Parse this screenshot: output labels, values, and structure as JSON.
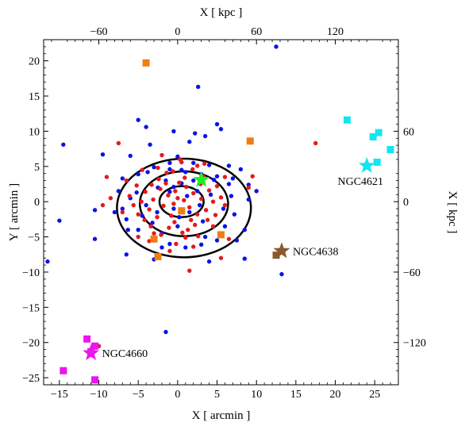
{
  "chart_data": {
    "type": "scatter",
    "title": "",
    "xlabel": "X [ arcmin ]",
    "ylabel": "Y [ arcmin ]",
    "top_axis_label": "X [ kpc ]",
    "right_axis_label": "X [ kpc ]",
    "xlim": [
      -17,
      28
    ],
    "ylim": [
      -26,
      23
    ],
    "x_ticks": [
      -15,
      -10,
      -5,
      0,
      5,
      10,
      15,
      20,
      25
    ],
    "y_ticks": [
      -25,
      -20,
      -15,
      -10,
      -5,
      0,
      5,
      10,
      15,
      20
    ],
    "top_ticks": [
      {
        "label": "-60",
        "x_arcmin": -10
      },
      {
        "label": "0",
        "x_arcmin": 0
      },
      {
        "label": "60",
        "x_arcmin": 10
      },
      {
        "label": "120",
        "x_arcmin": 20
      }
    ],
    "right_ticks": [
      {
        "label": "60",
        "y_arcmin": 10
      },
      {
        "label": "0",
        "y_arcmin": 0
      },
      {
        "label": "-60",
        "y_arcmin": -10
      },
      {
        "label": "-120",
        "y_arcmin": -20
      }
    ],
    "grid": false,
    "colors": {
      "blue": "#0a14e6",
      "red": "#e41a1a",
      "orange": "#f07d14",
      "cyan": "#14e6f0",
      "magenta": "#ee14ee",
      "brown": "#8a5a2c",
      "green": "#22ee22",
      "contour": "#000000"
    },
    "contours": [
      {
        "cx": 0.5,
        "cy": 0,
        "rx": 2.8,
        "ry": 2.2
      },
      {
        "cx": 0.8,
        "cy": -0.3,
        "rx": 5.6,
        "ry": 4.6
      },
      {
        "cx": 0.8,
        "cy": -0.9,
        "rx": 8.5,
        "ry": 7.0
      }
    ],
    "series": [
      {
        "marker": "circle",
        "color": "#0a14e6",
        "points": [
          [
            12.5,
            22
          ],
          [
            2.6,
            16.3
          ],
          [
            -5,
            11.6
          ],
          [
            5,
            11
          ],
          [
            5.5,
            10.3
          ],
          [
            -4,
            10.6
          ],
          [
            -0.5,
            10
          ],
          [
            2.2,
            9.7
          ],
          [
            3.5,
            9.3
          ],
          [
            1.5,
            8.5
          ],
          [
            -14.5,
            8.1
          ],
          [
            -9.5,
            6.7
          ],
          [
            -3.5,
            8.1
          ],
          [
            -6,
            6.5
          ],
          [
            0,
            6.4
          ],
          [
            2,
            5.5
          ],
          [
            4,
            5.2
          ],
          [
            6.5,
            5.1
          ],
          [
            8,
            4.6
          ],
          [
            -3,
            4.9
          ],
          [
            -1,
            4.6
          ],
          [
            1,
            4.2
          ],
          [
            3,
            3.9
          ],
          [
            5,
            3.6
          ],
          [
            7,
            3.3
          ],
          [
            -5,
            3.9
          ],
          [
            -7,
            3.3
          ],
          [
            9,
            2.4
          ],
          [
            10,
            1.5
          ],
          [
            -7.5,
            1.5
          ],
          [
            -6,
            0.5
          ],
          [
            9,
            0.3
          ],
          [
            -4,
            -0.5
          ],
          [
            -7,
            -1
          ],
          [
            -8,
            -1.5
          ],
          [
            -6.5,
            -2.5
          ],
          [
            -10.5,
            -1.2
          ],
          [
            -15,
            -2.7
          ],
          [
            -5,
            -4
          ],
          [
            -3,
            -5.5
          ],
          [
            -1,
            -6
          ],
          [
            1,
            -6.5
          ],
          [
            3,
            -6.1
          ],
          [
            5,
            -5.5
          ],
          [
            7.5,
            -5.5
          ],
          [
            6,
            -3.5
          ],
          [
            8.5,
            -4
          ],
          [
            4,
            -8.5
          ],
          [
            8.5,
            -8.1
          ],
          [
            -6.5,
            -7.5
          ],
          [
            -3,
            -8.2
          ],
          [
            -10.5,
            -5.3
          ],
          [
            -16.5,
            -8.5
          ],
          [
            13.2,
            -10.3
          ],
          [
            -1.5,
            -18.5
          ],
          [
            -2,
            -6.5
          ],
          [
            -1.5,
            3
          ],
          [
            0.5,
            2.6
          ],
          [
            -0.5,
            -1
          ],
          [
            1.5,
            -1.5
          ],
          [
            2.5,
            1.5
          ],
          [
            -2.5,
            2
          ],
          [
            3.2,
            -2.8
          ],
          [
            -3.2,
            -3
          ],
          [
            0,
            -3.5
          ],
          [
            4.2,
            1
          ],
          [
            -4.5,
            -2
          ],
          [
            2,
            3
          ],
          [
            -1,
            5.5
          ],
          [
            5.8,
            -1
          ],
          [
            -5.2,
            1.3
          ],
          [
            3.5,
            -5
          ],
          [
            -2,
            -4.5
          ],
          [
            0.5,
            4.5
          ],
          [
            6.5,
            2.5
          ],
          [
            -6.3,
            -4
          ],
          [
            7.2,
            -1.8
          ],
          [
            -1,
            1.4
          ],
          [
            1.2,
            0.8
          ],
          [
            0.2,
            -2.2
          ],
          [
            -2.6,
            -1.5
          ],
          [
            2.8,
            -0.5
          ],
          [
            -0.5,
            2.1
          ],
          [
            4.6,
            3.1
          ],
          [
            -3.8,
            4.2
          ],
          [
            6.8,
            0.8
          ]
        ]
      },
      {
        "marker": "circle",
        "color": "#e41a1a",
        "points": [
          [
            -7.5,
            8.3
          ],
          [
            17.5,
            8.3
          ],
          [
            -2,
            6.6
          ],
          [
            -4.5,
            4.5
          ],
          [
            0.5,
            5.6
          ],
          [
            2.5,
            5.1
          ],
          [
            -9,
            3.5
          ],
          [
            -6.5,
            3
          ],
          [
            6,
            3.5
          ],
          [
            9,
            2
          ],
          [
            -8.5,
            0.5
          ],
          [
            9.5,
            3.6
          ],
          [
            -7,
            -1.5
          ],
          [
            -9.5,
            -0.5
          ],
          [
            4.5,
            -3.5
          ],
          [
            -3,
            -4.5
          ],
          [
            -5,
            -5
          ],
          [
            6.5,
            -5.3
          ],
          [
            1,
            -5.1
          ],
          [
            -1,
            -7
          ],
          [
            2,
            -6.4
          ],
          [
            5.5,
            -8
          ],
          [
            1.5,
            -9.8
          ],
          [
            -10,
            -20.5
          ],
          [
            0,
            0.5
          ],
          [
            -0.5,
            -0.3
          ],
          [
            0.8,
            0.2
          ],
          [
            -1.2,
            0.9
          ],
          [
            1.5,
            -0.8
          ],
          [
            -0.3,
            1.5
          ],
          [
            0.4,
            -1.4
          ],
          [
            -1.8,
            -0.6
          ],
          [
            2,
            1.2
          ],
          [
            -2.2,
            1.8
          ],
          [
            1.1,
            2.1
          ],
          [
            -0.8,
            -2
          ],
          [
            2.5,
            -1.8
          ],
          [
            -2.6,
            -2.2
          ],
          [
            0.2,
            2.7
          ],
          [
            -1.5,
            2.6
          ],
          [
            3,
            0.4
          ],
          [
            -3.1,
            0.3
          ],
          [
            1.7,
            -2.6
          ],
          [
            -0.4,
            -2.9
          ],
          [
            2.9,
            2.5
          ],
          [
            -3.3,
            2.4
          ],
          [
            3.6,
            -1.2
          ],
          [
            -3.6,
            -1.1
          ],
          [
            0.9,
            3.4
          ],
          [
            -1.1,
            -3.7
          ],
          [
            2.2,
            -3.3
          ],
          [
            -2.4,
            3.2
          ],
          [
            4,
            1.6
          ],
          [
            -4.1,
            1.4
          ],
          [
            3.8,
            -2.6
          ],
          [
            -4.2,
            -2.6
          ],
          [
            1.3,
            -4
          ],
          [
            -1.4,
            4.1
          ],
          [
            4.5,
            0
          ],
          [
            -4.6,
            0
          ],
          [
            0.6,
            -4.4
          ],
          [
            -0.6,
            4.3
          ],
          [
            3.2,
            3.6
          ],
          [
            -3.4,
            -3.5
          ],
          [
            5,
            2.2
          ],
          [
            -5.2,
            2.3
          ],
          [
            4.8,
            -1.9
          ],
          [
            -5,
            -1.8
          ],
          [
            1.9,
            4.6
          ],
          [
            -2.1,
            -4.7
          ],
          [
            5.5,
            0.6
          ],
          [
            -5.6,
            -0.5
          ],
          [
            2.6,
            -4.9
          ],
          [
            -2.5,
            4.8
          ],
          [
            6,
            -0.5
          ],
          [
            -6.1,
            0.8
          ],
          [
            0.3,
            6
          ],
          [
            -0.2,
            -6
          ],
          [
            3.4,
            5.4
          ],
          [
            -3.6,
            -5.6
          ]
        ]
      },
      {
        "marker": "square",
        "color": "#f07d14",
        "points": [
          [
            -4,
            19.7
          ],
          [
            9.2,
            8.6
          ],
          [
            -3,
            -5.3
          ],
          [
            -2.5,
            -7.8
          ],
          [
            5.5,
            -4.7
          ],
          [
            0.5,
            -1.3
          ]
        ]
      },
      {
        "marker": "square",
        "color": "#14e6f0",
        "points": [
          [
            21.5,
            11.6
          ],
          [
            25.5,
            9.8
          ],
          [
            24.8,
            9.2
          ],
          [
            27,
            7.4
          ],
          [
            25.3,
            5.6
          ]
        ]
      },
      {
        "marker": "square",
        "color": "#ee14ee",
        "points": [
          [
            -11.5,
            -19.5
          ],
          [
            -10.5,
            -20.5
          ],
          [
            -11,
            -21.3
          ],
          [
            -14.5,
            -24
          ],
          [
            -10.5,
            -25.3
          ]
        ]
      },
      {
        "marker": "square",
        "color": "#8a5a2c",
        "points": [
          [
            12.5,
            -7.6
          ]
        ]
      },
      {
        "marker": "star",
        "color": "#22ee22",
        "name": "",
        "points": [
          [
            3,
            3.1
          ]
        ]
      },
      {
        "marker": "star",
        "color": "#14e6f0",
        "name": "NGC4621",
        "points": [
          [
            24,
            5.1
          ]
        ]
      },
      {
        "marker": "star",
        "color": "#8a5a2c",
        "name": "NGC4638",
        "points": [
          [
            13.2,
            -7
          ]
        ]
      },
      {
        "marker": "star",
        "color": "#ee14ee",
        "name": "NGC4660",
        "points": [
          [
            -11,
            -21.5
          ]
        ]
      }
    ],
    "annotations": [
      {
        "text": "NGC4621",
        "x": 24,
        "y": 5.1,
        "anchor": "below-left"
      },
      {
        "text": "NGC4638",
        "x": 13.2,
        "y": -7,
        "anchor": "right"
      },
      {
        "text": "NGC4660",
        "x": -11,
        "y": -21.5,
        "anchor": "right"
      }
    ]
  }
}
